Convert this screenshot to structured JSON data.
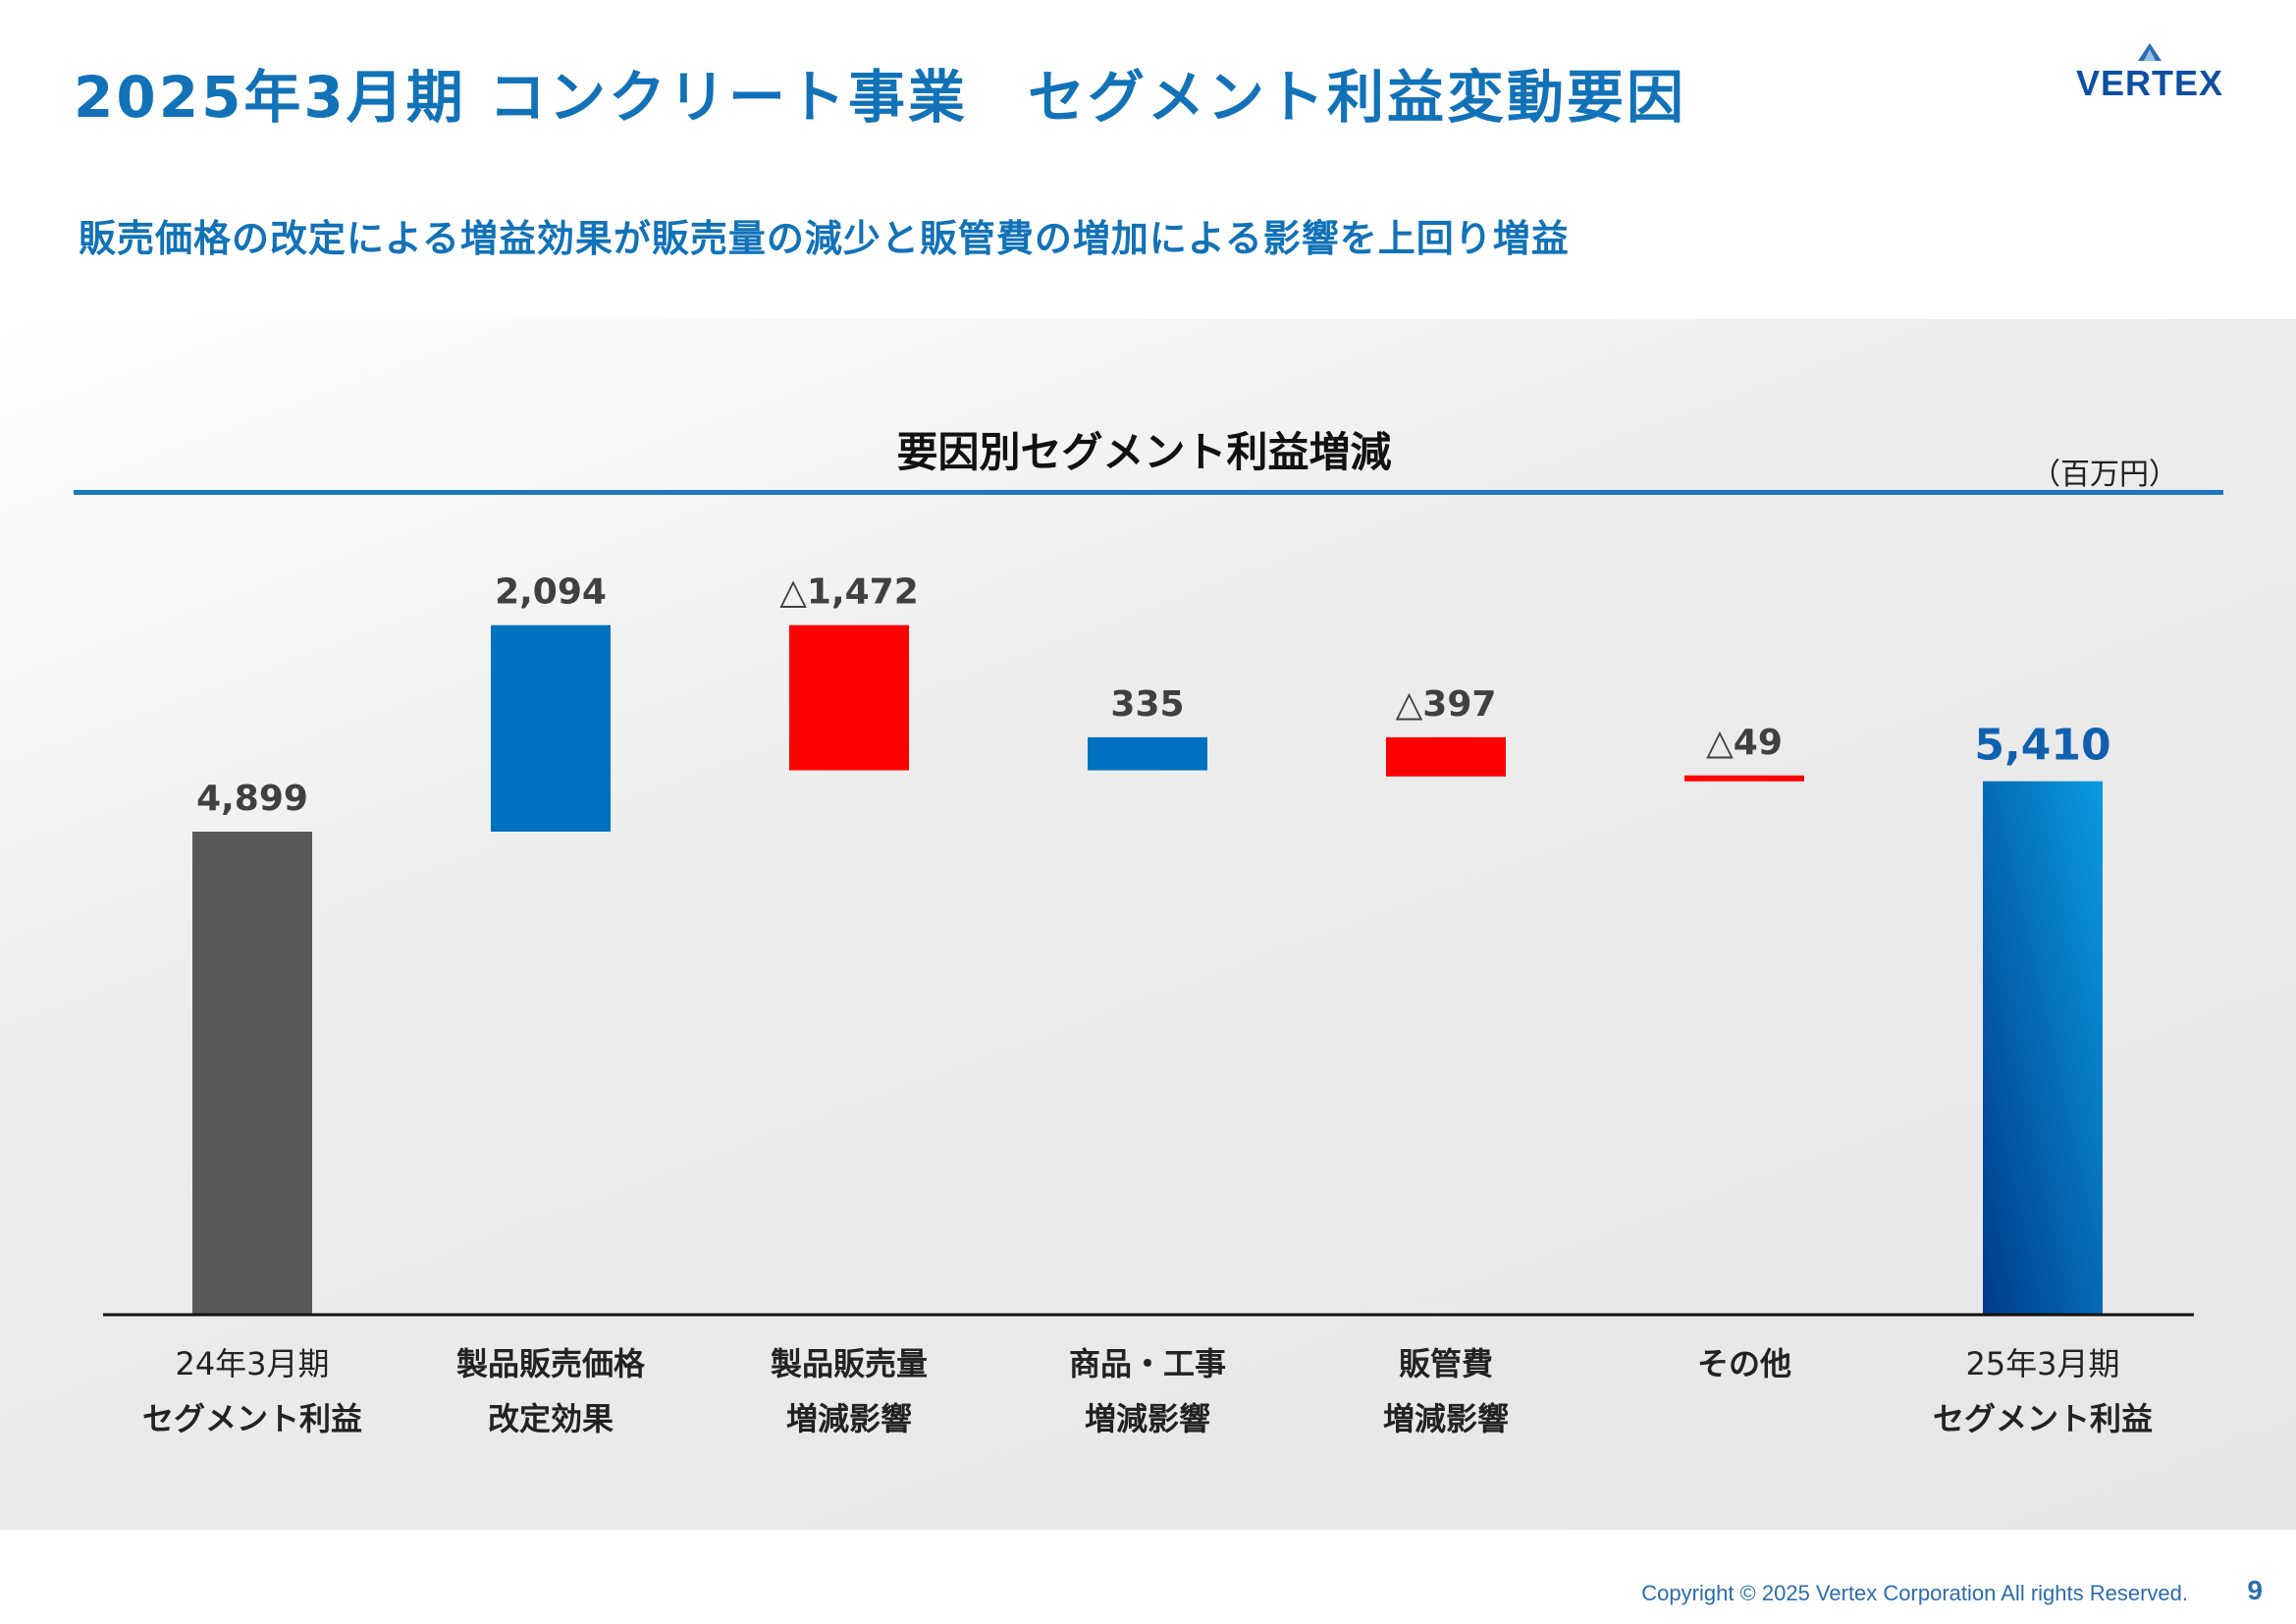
{
  "header": {
    "title": "2025年3月期 コンクリート事業　セグメント利益変動要因",
    "subtitle": "販売価格の改定による増益効果が販売量の減少と販管費の増加による影響を上回り増益",
    "logo_text": "VERTEX"
  },
  "chart_data": {
    "type": "waterfall",
    "title": "要因別セグメント利益増減",
    "unit": "（百万円）",
    "categories": [
      [
        "24年3月期",
        "セグメント利益"
      ],
      [
        "製品販売価格",
        "改定効果"
      ],
      [
        "製品販売量",
        "増減影響"
      ],
      [
        "商品・工事",
        "増減影響"
      ],
      [
        "販管費",
        "増減影響"
      ],
      [
        "その他"
      ],
      [
        "25年3月期",
        "セグメント利益"
      ]
    ],
    "values": [
      4899,
      2094,
      -1472,
      335,
      -397,
      -49,
      5410
    ],
    "kinds": [
      "total",
      "delta",
      "delta",
      "delta",
      "delta",
      "delta",
      "total"
    ],
    "labels": [
      "4,899",
      "2,094",
      "△1,472",
      "335",
      "△397",
      "△49",
      "5,410"
    ],
    "ylim": [
      0,
      7500
    ],
    "colors": {
      "start_total": "#595959",
      "increase": "#0070c0",
      "decrease": "#ff0000",
      "end_total_top": "#0a9be0",
      "end_total_bottom": "#003a8c",
      "end_label": "#1060b0"
    }
  },
  "footer": {
    "copyright": "Copyright © 2025 Vertex Corporation All rights Reserved.",
    "page_number": "9"
  }
}
